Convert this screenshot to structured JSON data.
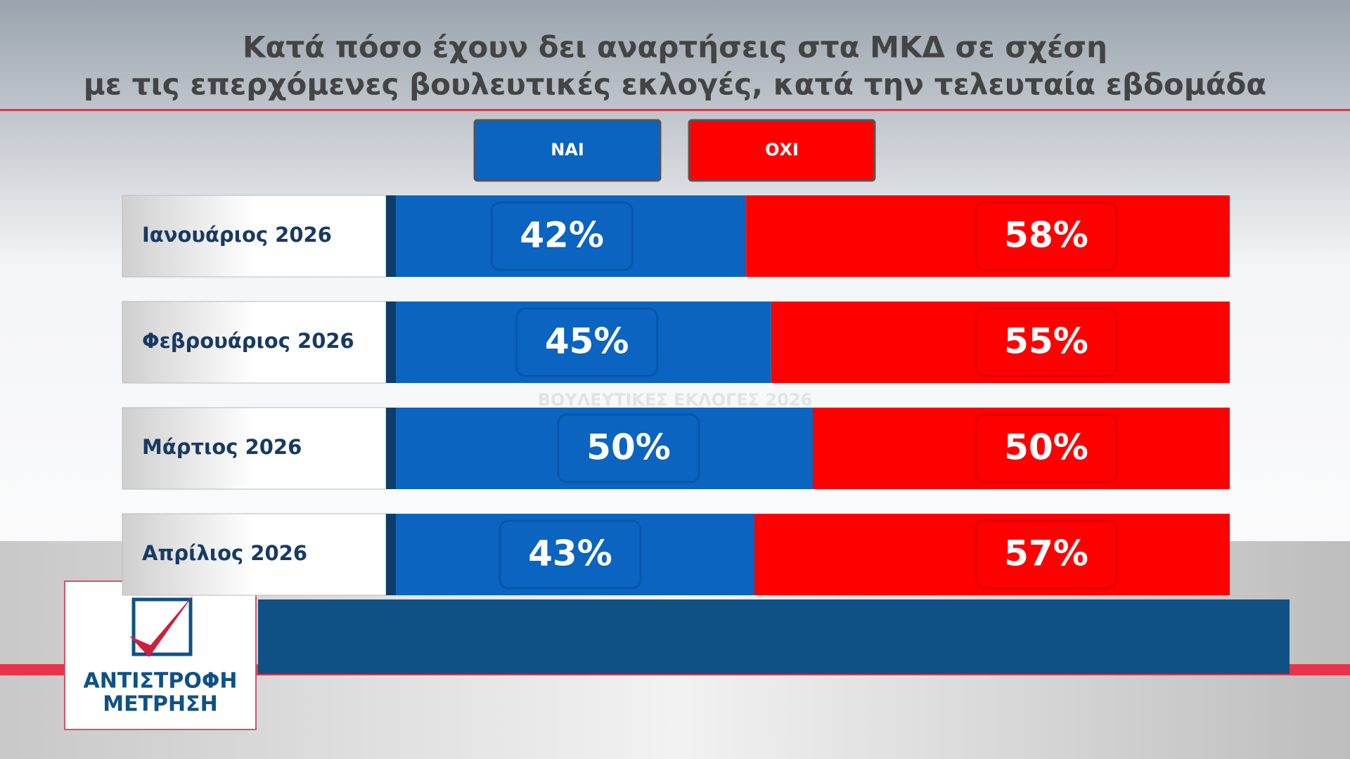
{
  "chart_data": {
    "type": "stacked-bar",
    "title": [
      "Κατά πόσο έχουν δει αναρτήσεις στα ΜΚΔ σε σχέση",
      "με τις επερχόμενες βουλευτικές εκλογές, κατά την τελευταία εβδομάδα"
    ],
    "categories": [
      "Ιανουάριος 2026",
      "Φεβρουάριος 2026",
      "Μάρτιος 2026",
      "Απρίλιος 2026"
    ],
    "series": [
      {
        "name": "ΝΑΙ",
        "color": "#0a64c0",
        "values": [
          42,
          45,
          50,
          43
        ],
        "value_labels": [
          "42%",
          "45%",
          "50%",
          "43%"
        ]
      },
      {
        "name": "ΟΧΙ",
        "color": "#ff0000",
        "values": [
          58,
          55,
          50,
          57
        ],
        "value_labels": [
          "58%",
          "55%",
          "50%",
          "57%"
        ]
      }
    ],
    "watermark": "ΒΟΥΛΕΥΤΙΚΕΣ ΕΚΛΟΓΕΣ 2026",
    "logo": [
      "ΑΝΤΙΣΤΡΟΦΗ",
      "ΜΕΤΡΗΣΗ"
    ]
  }
}
